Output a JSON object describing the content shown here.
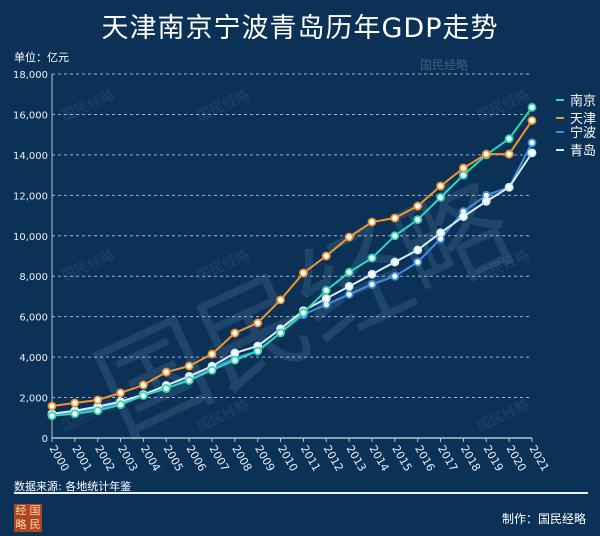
{
  "title": "天津南京宁波青岛历年GDP走势",
  "unit_label": "单位：亿元",
  "source": "数据来源: 各地统计年鉴",
  "maker": "制作：国民经略",
  "logo_chars": [
    "经",
    "国",
    "略",
    "民"
  ],
  "watermark": "国民经略",
  "chart_data": {
    "type": "line",
    "title": "天津南京宁波青岛历年GDP走势",
    "ylabel": "亿元",
    "xlabel": "",
    "ylim": [
      0,
      18000
    ],
    "yticks": [
      0,
      2000,
      4000,
      6000,
      8000,
      10000,
      12000,
      14000,
      16000,
      18000
    ],
    "ytick_labels": [
      "0",
      "2,000",
      "4,000",
      "6,000",
      "8,000",
      "10,000",
      "12,000",
      "14,000",
      "16,000",
      "18,000"
    ],
    "grid": true,
    "legend_position": "right",
    "x": [
      "2000",
      "2001",
      "2002",
      "2003",
      "2004",
      "2005",
      "2006",
      "2007",
      "2008",
      "2009",
      "2010",
      "2011",
      "2012",
      "2013",
      "2014",
      "2015",
      "2016",
      "2017",
      "2018",
      "2019",
      "2020",
      "2021"
    ],
    "series": [
      {
        "name": "南京",
        "color": "#2fd6b8",
        "values": [
          1100,
          1200,
          1350,
          1650,
          2100,
          2450,
          2850,
          3350,
          3850,
          4300,
          5200,
          6200,
          7300,
          8200,
          8900,
          10000,
          10800,
          11900,
          13000,
          14000,
          14800,
          16350
        ]
      },
      {
        "name": "天津",
        "color": "#f0962f",
        "values": [
          1580,
          1730,
          1880,
          2230,
          2620,
          3260,
          3560,
          4150,
          5190,
          5690,
          6830,
          8160,
          9000,
          9940,
          10680,
          10880,
          11470,
          12460,
          13350,
          14040,
          14040,
          15700
        ]
      },
      {
        "name": "宁波",
        "color": "#3f8fe0",
        "values": [
          1150,
          1300,
          1450,
          1750,
          2150,
          2450,
          2900,
          3450,
          3950,
          4300,
          5200,
          6100,
          6600,
          7100,
          7600,
          8000,
          8700,
          9850,
          11200,
          12000,
          12400,
          14600
        ]
      },
      {
        "name": "青岛",
        "color": "#d6ecf4",
        "values": [
          1200,
          1350,
          1550,
          1800,
          2150,
          2600,
          3050,
          3550,
          4200,
          4550,
          5400,
          6300,
          6900,
          7500,
          8100,
          8700,
          9300,
          10150,
          10950,
          11700,
          12400,
          14100
        ]
      }
    ]
  }
}
